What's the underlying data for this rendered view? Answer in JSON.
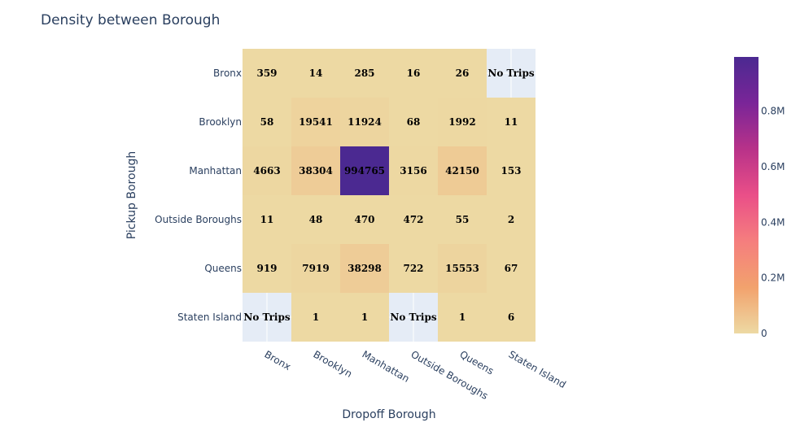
{
  "chart_data": {
    "type": "heatmap",
    "title": "Density between Borough",
    "xlabel": "Dropoff Borough",
    "ylabel": "Pickup Borough",
    "x": [
      "Bronx",
      "Brooklyn",
      "Manhattan",
      "Outside Boroughs",
      "Queens",
      "Staten Island"
    ],
    "y": [
      "Bronx",
      "Brooklyn",
      "Manhattan",
      "Outside Boroughs",
      "Queens",
      "Staten Island"
    ],
    "z": [
      [
        359,
        14,
        285,
        16,
        26,
        null
      ],
      [
        58,
        19541,
        11924,
        68,
        1992,
        11
      ],
      [
        4663,
        38304,
        994765,
        3156,
        42150,
        153
      ],
      [
        11,
        48,
        470,
        472,
        55,
        2
      ],
      [
        919,
        7919,
        38298,
        722,
        15553,
        67
      ],
      [
        null,
        1,
        1,
        null,
        1,
        6
      ]
    ],
    "missing_label": "No Trips",
    "colorscale": [
      "#edd9a3",
      "#f2a26d",
      "#f57e7e",
      "#ea4f88",
      "#b83289",
      "#7a2598",
      "#4b2991"
    ],
    "missing_color": "#e5ecf6",
    "colorbar": {
      "range": [
        0,
        994765
      ],
      "tickvals": [
        0,
        200000,
        400000,
        600000,
        800000
      ],
      "ticktext": [
        "0",
        "0.2M",
        "0.4M",
        "0.6M",
        "0.8M"
      ]
    }
  }
}
